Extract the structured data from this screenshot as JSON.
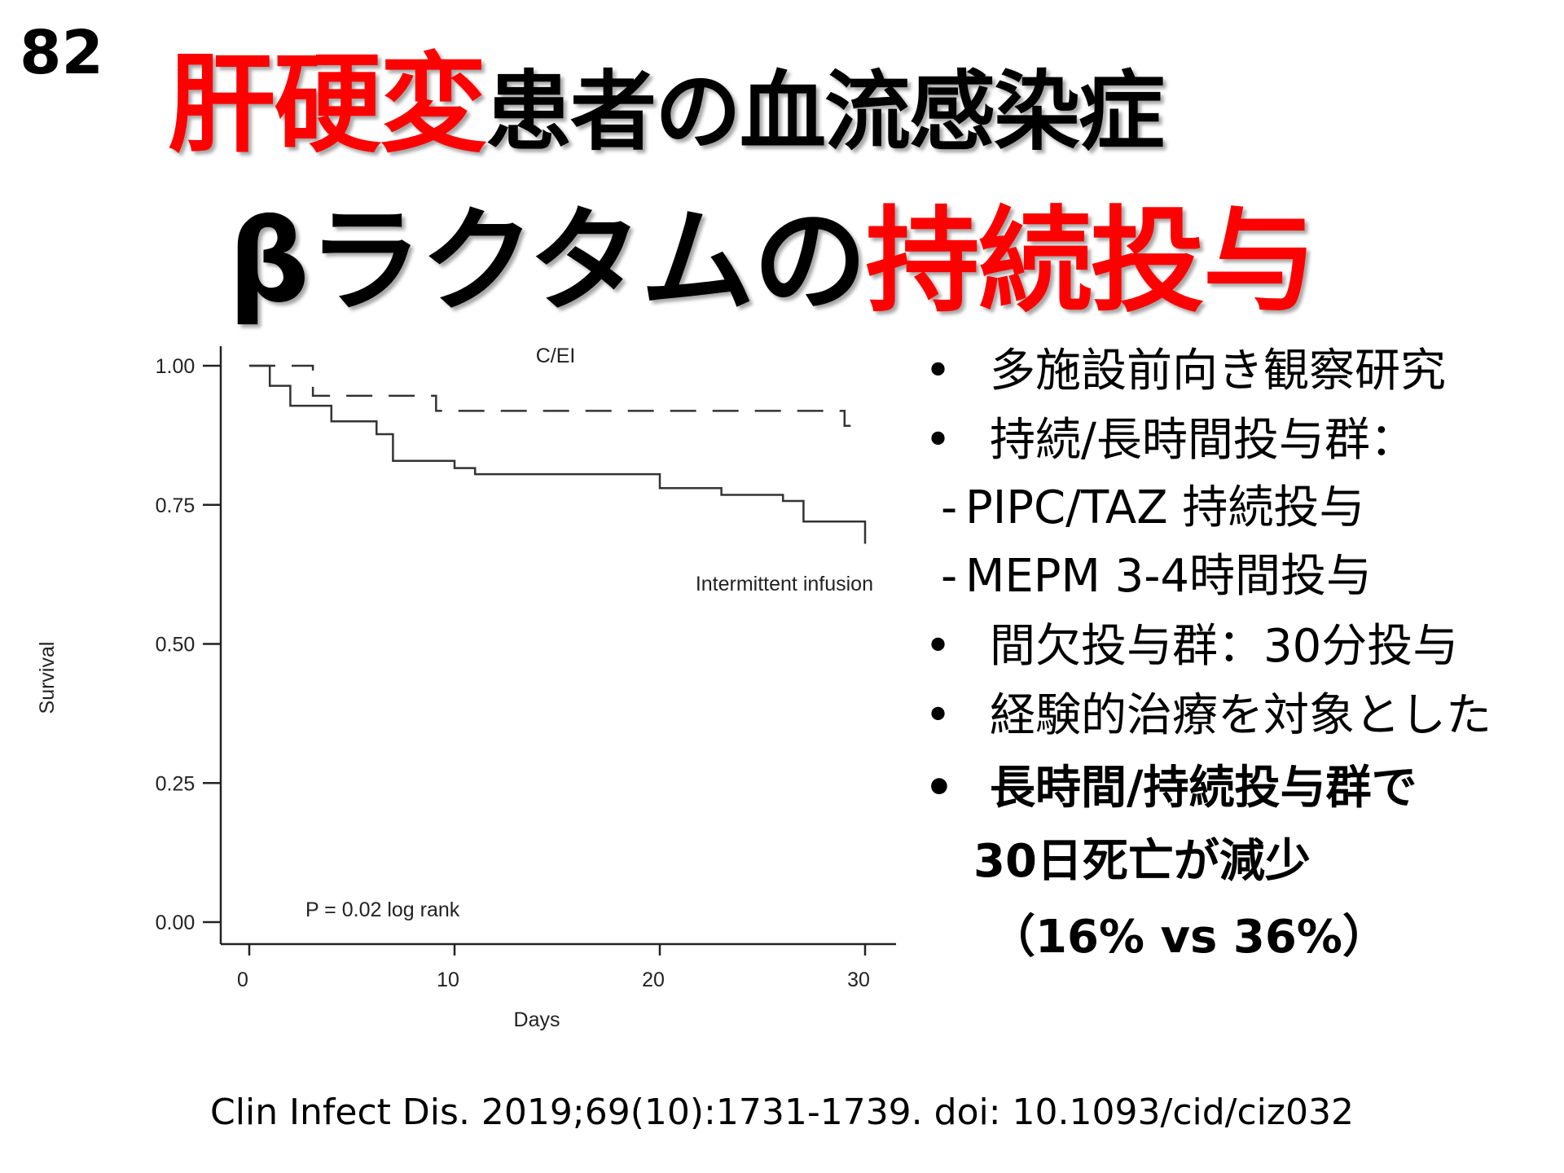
{
  "slide_number": "82",
  "title": {
    "line1_red": "肝硬変",
    "line1_black": "患者の血流感染症",
    "line2_black": "βラクタムの",
    "line2_red": "持続投与"
  },
  "bullets": [
    {
      "marker": "•",
      "text": "多施設前向き観察研究",
      "bold": false
    },
    {
      "marker": "•",
      "text": "持続/長時間投与群：",
      "bold": false
    },
    {
      "marker": "-",
      "text": "PIPC/TAZ 持続投与",
      "bold": false
    },
    {
      "marker": "-",
      "text": "MEPM 3-4時間投与",
      "bold": false
    },
    {
      "marker": "•",
      "text": "間欠投与群：30分投与",
      "bold": false
    },
    {
      "marker": "•",
      "text": "経験的治療を対象とした",
      "bold": false
    },
    {
      "marker": "•",
      "text": "長時間/持続投与群で",
      "bold": true
    },
    {
      "marker": "",
      "text": "30日死亡が減少",
      "bold": true
    },
    {
      "marker": "",
      "text": "（16% vs 36%）",
      "bold": true
    }
  ],
  "citation": "Clin Infect Dis. 2019;69(10):1731-1739. doi: 10.1093/cid/ciz032",
  "colors": {
    "accent_red": "#ff0000"
  },
  "chart_data": {
    "type": "line",
    "subtype": "kaplan-meier step",
    "xlabel": "Days",
    "ylabel": "Survival",
    "xlim": [
      0,
      30
    ],
    "ylim": [
      0,
      1
    ],
    "xticks": [
      "0",
      "10",
      "20",
      "30"
    ],
    "yticks": [
      "0.00",
      "0.25",
      "0.50",
      "0.75",
      "1.00"
    ],
    "annotation": "P = 0.02 log rank",
    "series": [
      {
        "name": "C/EI",
        "style": "dashed",
        "x": [
          0,
          3.1,
          9.1,
          29.0,
          29.8
        ],
        "y": [
          1.0,
          0.946,
          0.919,
          0.892,
          0.892
        ]
      },
      {
        "name": "Intermittent infusion",
        "style": "solid",
        "x": [
          0,
          1.0,
          2.0,
          4.0,
          6.2,
          7.0,
          10.0,
          11.0,
          20.0,
          23.0,
          26.0,
          27.0,
          30.0,
          30.0
        ],
        "y": [
          1.0,
          0.964,
          0.928,
          0.9,
          0.877,
          0.829,
          0.816,
          0.805,
          0.78,
          0.768,
          0.757,
          0.72,
          0.72,
          0.68
        ]
      }
    ]
  }
}
